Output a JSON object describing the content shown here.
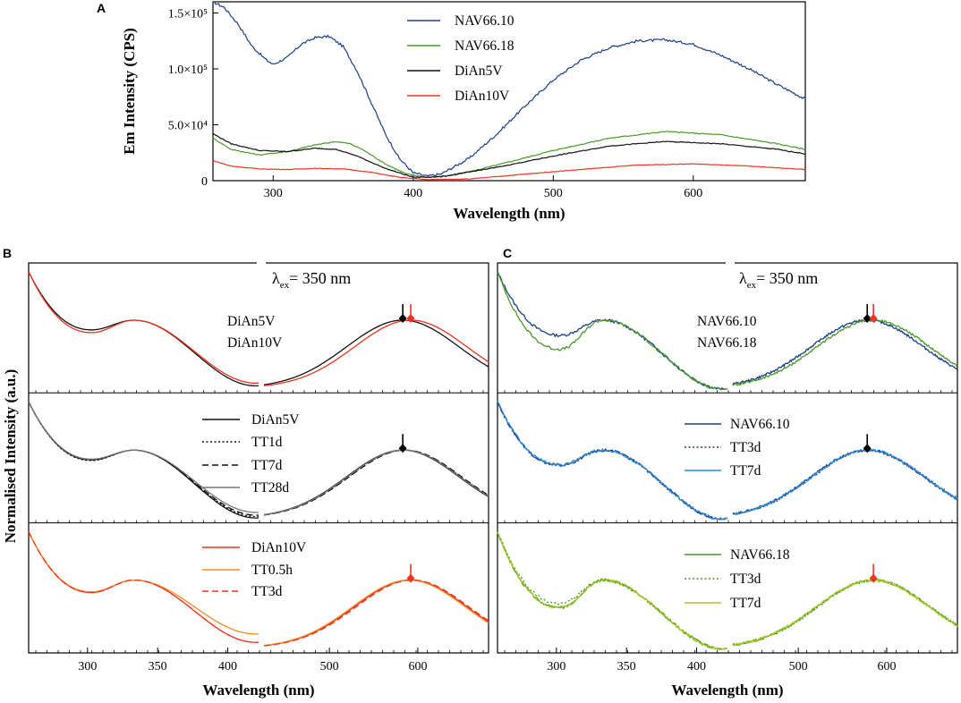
{
  "colors": {
    "navy": "#1b3f8b",
    "green": "#4a9a2a",
    "black": "#111111",
    "red": "#ee3322",
    "grey": "#777777",
    "orange": "#f08c1e",
    "blue": "#2e8bd0",
    "lime": "#a8c820"
  },
  "chart_data": [
    {
      "id": "A",
      "panel_label": "A",
      "type": "line",
      "ylabel": "Em Intensity (CPS)",
      "xlabel": "Wavelength (nm)",
      "xlim": [
        257,
        680
      ],
      "ylim": [
        0,
        160000
      ],
      "x_ticks": [
        "300",
        "400",
        "500",
        "600"
      ],
      "y_ticks": [
        {
          "value": 0,
          "label": "0"
        },
        {
          "value": 50000,
          "label": "5.0×10⁴"
        },
        {
          "value": 100000,
          "label": "1.0×10⁵"
        },
        {
          "value": 150000,
          "label": "1.5×10⁵"
        }
      ],
      "legend": [
        "NAV66.10",
        "NAV66.18",
        "DiAn5V",
        "DiAn10V"
      ],
      "series": [
        {
          "name": "NAV66.10",
          "color": "navy",
          "x": [
            257,
            265,
            275,
            285,
            295,
            300,
            310,
            320,
            330,
            340,
            350,
            360,
            370,
            380,
            390,
            400,
            410,
            420,
            440,
            460,
            480,
            500,
            520,
            540,
            560,
            580,
            600,
            620,
            640,
            660,
            680
          ],
          "y": [
            160000,
            155000,
            140000,
            120000,
            108000,
            104000,
            110000,
            122000,
            128000,
            129000,
            120000,
            98000,
            70000,
            42000,
            20000,
            7000,
            4000,
            6000,
            20000,
            42000,
            67000,
            90000,
            108000,
            119000,
            125000,
            126000,
            122000,
            112000,
            100000,
            86000,
            73000
          ]
        },
        {
          "name": "NAV66.18",
          "color": "green",
          "x": [
            257,
            270,
            290,
            310,
            330,
            345,
            355,
            365,
            380,
            395,
            410,
            430,
            460,
            500,
            540,
            580,
            620,
            660,
            680
          ],
          "y": [
            38000,
            28000,
            23000,
            26000,
            32000,
            35000,
            33000,
            27000,
            15000,
            6000,
            3000,
            5000,
            14000,
            27000,
            38000,
            44000,
            41000,
            33000,
            28000
          ]
        },
        {
          "name": "DiAn5V",
          "color": "black",
          "x": [
            257,
            270,
            290,
            310,
            330,
            345,
            360,
            380,
            400,
            420,
            460,
            500,
            540,
            580,
            620,
            660,
            680
          ],
          "y": [
            42000,
            33000,
            27000,
            26000,
            29000,
            28000,
            22000,
            11000,
            3000,
            3500,
            12000,
            22000,
            31000,
            35000,
            33000,
            28000,
            24000
          ]
        },
        {
          "name": "DiAn10V",
          "color": "red",
          "x": [
            257,
            270,
            290,
            310,
            330,
            350,
            370,
            390,
            410,
            440,
            500,
            560,
            600,
            640,
            680
          ],
          "y": [
            18000,
            13000,
            10500,
            10000,
            11000,
            10500,
            7500,
            3000,
            1000,
            1500,
            8000,
            14000,
            15000,
            13000,
            10000
          ]
        }
      ]
    },
    {
      "id": "B",
      "panel_label": "B",
      "type": "line",
      "annotation": "350 nm",
      "excitation_label": {
        "lambda": "λ",
        "sub": "ex",
        "eq": "= 350 nm"
      },
      "ylabel": "Normalised Intensity (a.u.)",
      "xlabel": "Wavelength (nm)",
      "x_ticks": [
        "300",
        "350",
        "400",
        "500",
        "600"
      ],
      "rows": [
        {
          "legend": [
            "DiAn5V",
            "DiAn10V"
          ],
          "series": [
            {
              "name": "DiAn5V",
              "color": "black",
              "style": "solid",
              "uv_dip": 0.86,
              "uv_trail": 0.05,
              "peak": 583
            },
            {
              "name": "DiAn10V",
              "color": "red",
              "style": "solid",
              "uv_dip": 0.82,
              "uv_trail": 0.09,
              "peak": 592
            }
          ],
          "markers": [
            {
              "x": 583,
              "color": "black"
            },
            {
              "x": 592,
              "color": "red"
            }
          ]
        },
        {
          "legend": [
            "DiAn5V",
            "TT1d",
            "TT7d",
            "TT28d"
          ],
          "series": [
            {
              "name": "DiAn5V",
              "color": "black",
              "style": "solid",
              "uv_dip": 0.86,
              "uv_trail": 0.02,
              "peak": 583
            },
            {
              "name": "TT1d",
              "color": "black",
              "style": "dotted",
              "uv_dip": 0.85,
              "uv_trail": 0.04,
              "peak": 585
            },
            {
              "name": "TT7d",
              "color": "black",
              "style": "dashed",
              "uv_dip": 0.86,
              "uv_trail": 0.06,
              "peak": 586
            },
            {
              "name": "TT28d",
              "color": "grey",
              "style": "solid",
              "uv_dip": 0.87,
              "uv_trail": 0.1,
              "peak": 584
            }
          ],
          "markers": [
            {
              "x": 583,
              "color": "black"
            }
          ]
        },
        {
          "legend": [
            "DiAn10V",
            "TT0.5h",
            "TT3d"
          ],
          "series": [
            {
              "name": "DiAn10V",
              "color": "red",
              "style": "solid",
              "uv_dip": 0.82,
              "uv_trail": 0.1,
              "peak": 592
            },
            {
              "name": "TT0.5h",
              "color": "orange",
              "style": "solid",
              "uv_dip": 0.83,
              "uv_trail": 0.22,
              "peak": 590
            },
            {
              "name": "TT3d",
              "color": "red",
              "style": "dashed",
              "uv_dip": 0.82,
              "uv_trail": 0.1,
              "peak": 594
            }
          ],
          "markers": [
            {
              "x": 592,
              "color": "red"
            }
          ]
        }
      ]
    },
    {
      "id": "C",
      "panel_label": "C",
      "type": "line",
      "annotation": "350 nm",
      "excitation_label": {
        "lambda": "λ",
        "sub": "ex",
        "eq": "= 350 nm"
      },
      "xlabel": "Wavelength (nm)",
      "x_ticks": [
        "300",
        "350",
        "400",
        "500",
        "600"
      ],
      "rows": [
        {
          "legend": [
            "NAV66.10",
            "NAV66.18"
          ],
          "series": [
            {
              "name": "NAV66.10",
              "color": "navy",
              "style": "solid",
              "uv_dip": 0.78,
              "uv_trail": 0.0,
              "peak": 578
            },
            {
              "name": "NAV66.18",
              "color": "green",
              "style": "solid",
              "uv_dip": 0.58,
              "uv_trail": 0.0,
              "peak": 585
            }
          ],
          "markers": [
            {
              "x": 578,
              "color": "black"
            },
            {
              "x": 585,
              "color": "red"
            }
          ]
        },
        {
          "legend": [
            "NAV66.10",
            "TT3d",
            "TT7d"
          ],
          "series": [
            {
              "name": "NAV66.10",
              "color": "navy",
              "style": "solid",
              "uv_dip": 0.78,
              "uv_trail": 0.0,
              "peak": 578
            },
            {
              "name": "TT3d",
              "color": "navy",
              "style": "dotted",
              "uv_dip": 0.78,
              "uv_trail": 0.0,
              "peak": 580
            },
            {
              "name": "TT7d",
              "color": "blue",
              "style": "solid",
              "uv_dip": 0.79,
              "uv_trail": 0.0,
              "peak": 579
            }
          ],
          "markers": [
            {
              "x": 578,
              "color": "black"
            }
          ]
        },
        {
          "legend": [
            "NAV66.18",
            "TT3d",
            "TT7d"
          ],
          "series": [
            {
              "name": "NAV66.18",
              "color": "green",
              "style": "solid",
              "uv_dip": 0.6,
              "uv_trail": 0.0,
              "peak": 585
            },
            {
              "name": "TT3d",
              "color": "green",
              "style": "dotted",
              "uv_dip": 0.66,
              "uv_trail": 0.0,
              "peak": 586
            },
            {
              "name": "TT7d",
              "color": "lime",
              "style": "solid",
              "uv_dip": 0.6,
              "uv_trail": 0.0,
              "peak": 584
            }
          ],
          "markers": [
            {
              "x": 585,
              "color": "red"
            }
          ]
        }
      ]
    }
  ]
}
